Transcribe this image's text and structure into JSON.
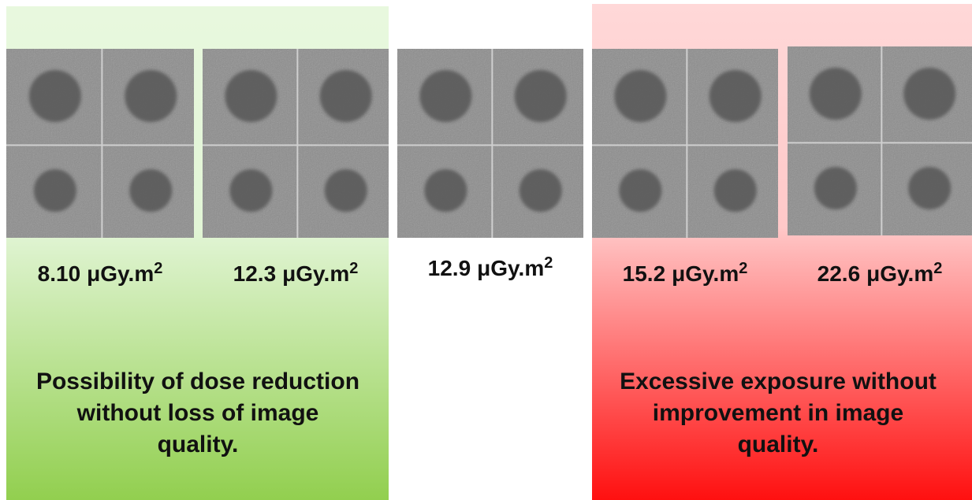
{
  "panels": [
    {
      "dose": "8.10",
      "unit": "μGy.m",
      "unit_exponent": "2"
    },
    {
      "dose": "12.3",
      "unit": "μGy.m",
      "unit_exponent": "2"
    },
    {
      "dose": "12.9",
      "unit": "μGy.m",
      "unit_exponent": "2"
    },
    {
      "dose": "15.2",
      "unit": "μGy.m",
      "unit_exponent": "2"
    },
    {
      "dose": "22.6",
      "unit": "μGy.m",
      "unit_exponent": "2"
    }
  ],
  "notes": {
    "left": {
      "lines": [
        "Possibility of dose reduction",
        "without loss of image",
        "quality."
      ]
    },
    "right": {
      "lines": [
        "Excessive exposure without",
        "improvement in image",
        "quality."
      ]
    }
  }
}
